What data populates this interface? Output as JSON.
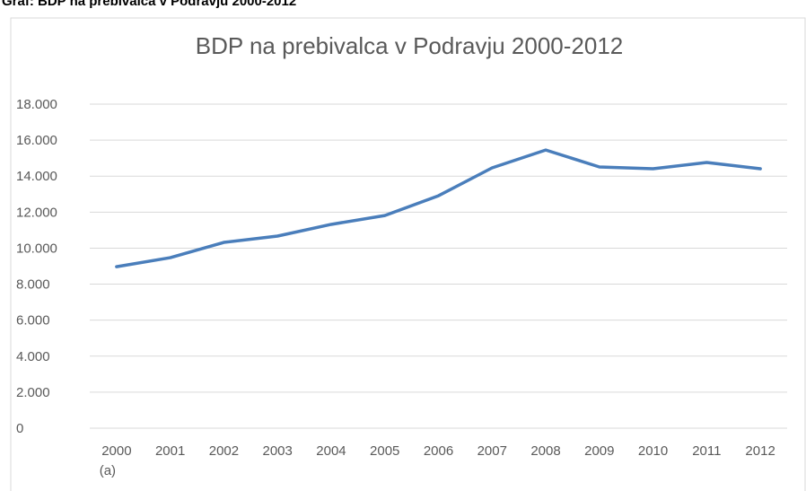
{
  "caption": "Graf: BDP na prebivalca v Podravju 2000-2012",
  "chart_data": {
    "type": "line",
    "title": "BDP na prebivalca v Podravju 2000-2012",
    "categories": [
      "2000 (a)",
      "2001",
      "2002",
      "2003",
      "2004",
      "2005",
      "2006",
      "2007",
      "2008",
      "2009",
      "2010",
      "2011",
      "2012"
    ],
    "series": [
      {
        "name": "BDP na prebivalca",
        "color": "#4a7ebb",
        "values": [
          8970,
          9470,
          10320,
          10670,
          11320,
          11810,
          12910,
          14460,
          15450,
          14510,
          14410,
          14760,
          14410
        ]
      }
    ],
    "ylim": [
      0,
      18000
    ],
    "yticks": [
      0,
      {
        "value": 2000,
        "label": "2.000"
      },
      {
        "value": 4000,
        "label": "4.000"
      },
      {
        "value": 6000,
        "label": "6.000"
      },
      {
        "value": 8000,
        "label": "8.000"
      },
      {
        "value": 10000,
        "label": "10.000"
      },
      {
        "value": 12000,
        "label": "12.000"
      },
      {
        "value": 14000,
        "label": "14.000"
      },
      {
        "value": 16000,
        "label": "16.000"
      },
      {
        "value": 18000,
        "label": "18.000"
      }
    ],
    "grid": true,
    "legend": false
  }
}
